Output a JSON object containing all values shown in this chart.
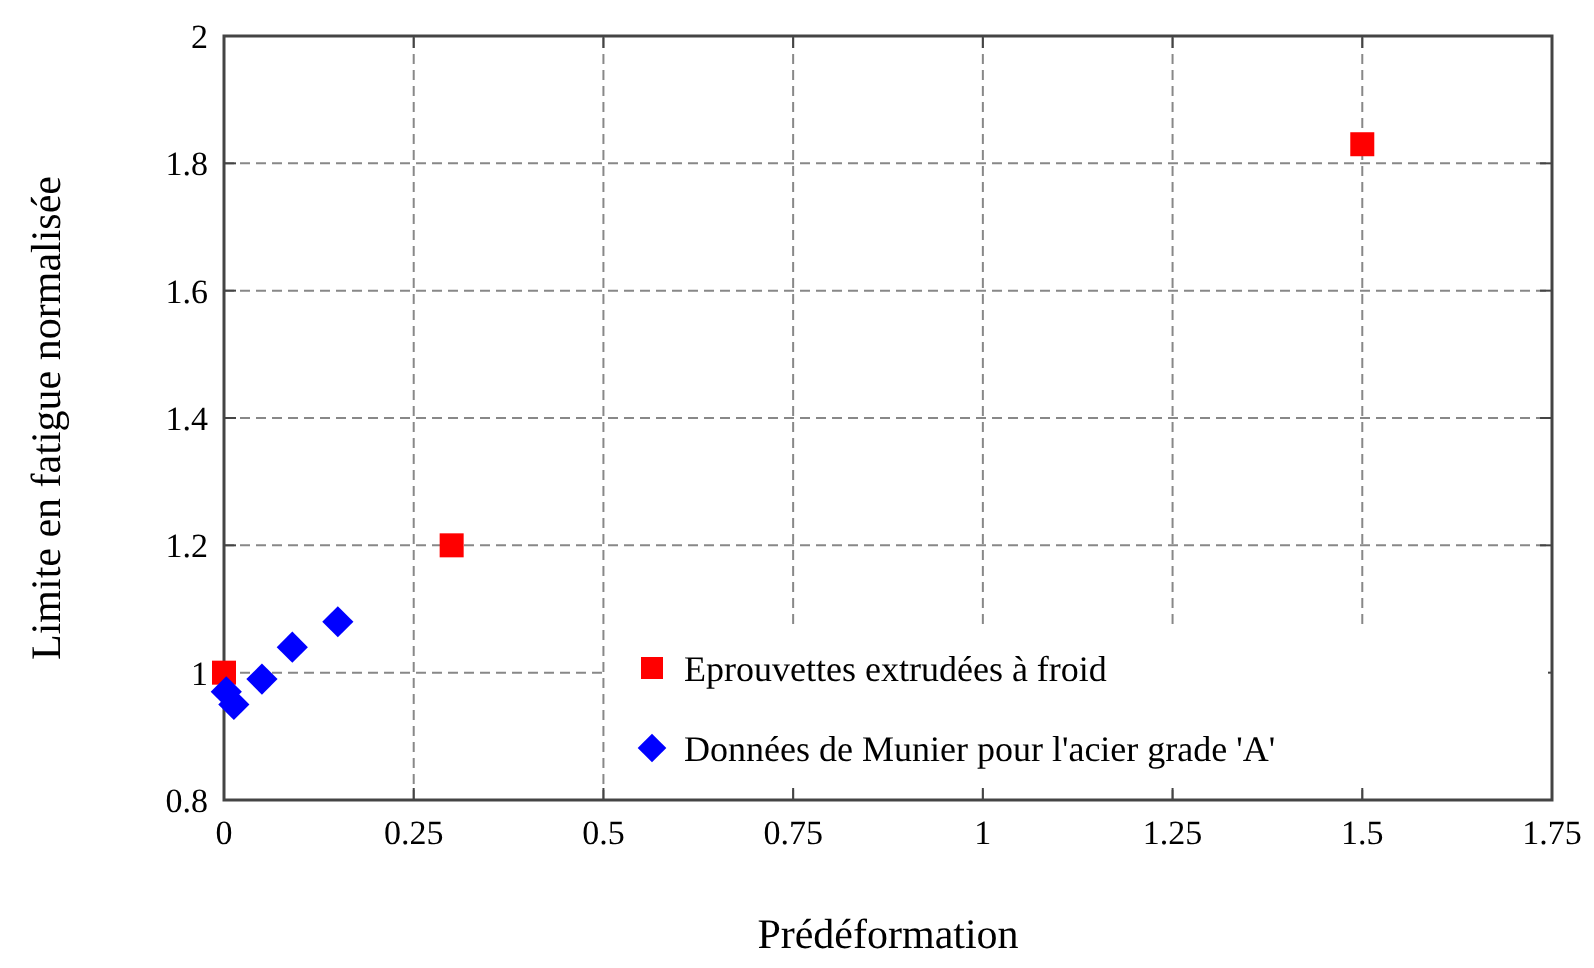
{
  "chart_data": {
    "type": "scatter",
    "xlabel": "Prédéformation",
    "ylabel": "Limite en fatigue normalisée",
    "xlim": [
      0,
      1.75
    ],
    "xticks": [
      0,
      0.25,
      0.5,
      0.75,
      1,
      1.25,
      1.5,
      1.75
    ],
    "ylim": [
      0.8,
      2
    ],
    "yticks": [
      0.8,
      1,
      1.2,
      1.4,
      1.6,
      1.8,
      2
    ],
    "grid": true,
    "legend": "bottom right",
    "series": [
      {
        "name": "Eprouvettes extrudées à froid",
        "color": "#ff0000",
        "marker": "square",
        "x": [
          0,
          0.3,
          1.5
        ],
        "values": [
          1.0,
          1.2,
          1.83
        ]
      },
      {
        "name": "Données de Munier pour l'acier grade 'A'",
        "color": "#0000ff",
        "marker": "diamond",
        "x": [
          0.003,
          0.013,
          0.05,
          0.09,
          0.15
        ],
        "values": [
          0.97,
          0.95,
          0.99,
          1.04,
          1.08
        ]
      }
    ]
  }
}
